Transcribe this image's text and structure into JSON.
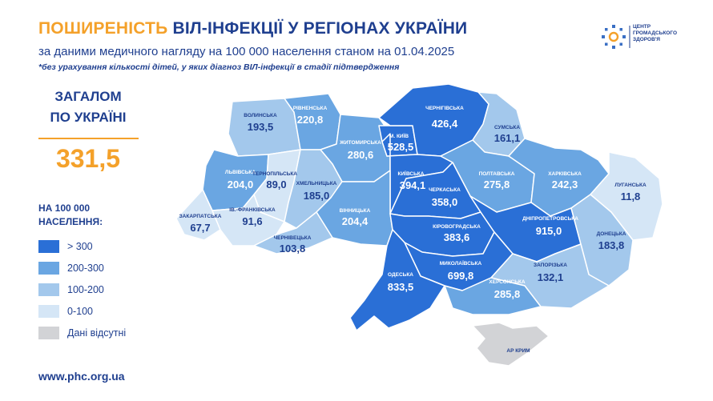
{
  "title": {
    "highlight": "ПОШИРЕНІСТЬ",
    "rest": "ВІЛ-ІНФЕКЦІЇ У РЕГІОНАХ УКРАЇНИ"
  },
  "subtitle": "за даними медичного нагляду на 100 000 населення станом на 01.04.2025",
  "note": "*без урахування кількості дітей, у яких діагноз ВІЛ-інфекції в стадії підтвердження",
  "logo": {
    "line1": "ЦЕНТР",
    "line2": "ГРОМАДСЬКОГО",
    "line3": "ЗДОРОВ'Я"
  },
  "total": {
    "line1": "ЗАГАЛОМ",
    "line2": "ПО УКРАЇНІ",
    "value": "331,5"
  },
  "legend": {
    "title1": "НА 100 000",
    "title2": "НАСЕЛЕННЯ:",
    "items": [
      {
        "label": "> 300",
        "color": "#2a6fd6"
      },
      {
        "label": "200-300",
        "color": "#6aa6e2"
      },
      {
        "label": "100-200",
        "color": "#a3c8ec"
      },
      {
        "label": "0-100",
        "color": "#d5e6f6"
      },
      {
        "label": "Дані відсутні",
        "color": "#d2d3d6"
      }
    ]
  },
  "url": "www.phc.org.ua",
  "regions": [
    {
      "name": "ВОЛИНСЬКА",
      "value": "193,5",
      "color": "#a3c8ec"
    },
    {
      "name": "РІВНЕНСЬКА",
      "value": "220,8",
      "color": "#6aa6e2"
    },
    {
      "name": "ЖИТОМИРСЬКА",
      "value": "280,6",
      "color": "#6aa6e2"
    },
    {
      "name": "М. КИЇВ",
      "value": "528,5",
      "color": "#2a6fd6"
    },
    {
      "name": "ЧЕРНІГІВСЬКА",
      "value": "426,4",
      "color": "#2a6fd6"
    },
    {
      "name": "СУМСЬКА",
      "value": "161,1",
      "color": "#a3c8ec"
    },
    {
      "name": "ЛЬВІВСЬКА",
      "value": "204,0",
      "color": "#6aa6e2"
    },
    {
      "name": "ТЕРНОПІЛЬСЬКА",
      "value": "89,0",
      "color": "#d5e6f6"
    },
    {
      "name": "ХМЕЛЬНИЦЬКА",
      "value": "185,0",
      "color": "#a3c8ec"
    },
    {
      "name": "КИЇВСЬКА",
      "value": "394,1",
      "color": "#2a6fd6"
    },
    {
      "name": "ПОЛТАВСЬКА",
      "value": "275,8",
      "color": "#6aa6e2"
    },
    {
      "name": "ХАРКІВСЬКА",
      "value": "242,3",
      "color": "#6aa6e2"
    },
    {
      "name": "ЛУГАНСЬКА",
      "value": "11,8",
      "color": "#d5e6f6"
    },
    {
      "name": "ЗАКАРПАТСЬКА",
      "value": "67,7",
      "color": "#d5e6f6"
    },
    {
      "name": "ІВ.-ФРАНКІВСЬКА",
      "value": "91,6",
      "color": "#d5e6f6"
    },
    {
      "name": "ВІННИЦЬКА",
      "value": "204,4",
      "color": "#6aa6e2"
    },
    {
      "name": "ЧЕРКАСЬКА",
      "value": "358,0",
      "color": "#2a6fd6"
    },
    {
      "name": "ЧЕРНІВЕЦЬКА",
      "value": "103,8",
      "color": "#a3c8ec"
    },
    {
      "name": "КІРОВОГРАДСЬКА",
      "value": "383,6",
      "color": "#2a6fd6"
    },
    {
      "name": "ДНІПРОПЕТРОВСЬКА",
      "value": "915,0",
      "color": "#2a6fd6"
    },
    {
      "name": "ДОНЕЦЬКА",
      "value": "183,8",
      "color": "#a3c8ec"
    },
    {
      "name": "МИКОЛАЇВСЬКА",
      "value": "699,8",
      "color": "#2a6fd6"
    },
    {
      "name": "ЗАПОРІЗЬКА",
      "value": "132,1",
      "color": "#a3c8ec"
    },
    {
      "name": "ОДЕСЬКА",
      "value": "833,5",
      "color": "#2a6fd6"
    },
    {
      "name": "ХЕРСОНСЬКА",
      "value": "285,8",
      "color": "#6aa6e2"
    },
    {
      "name": "АР КРИМ",
      "value": "",
      "color": "#d2d3d6"
    }
  ]
}
